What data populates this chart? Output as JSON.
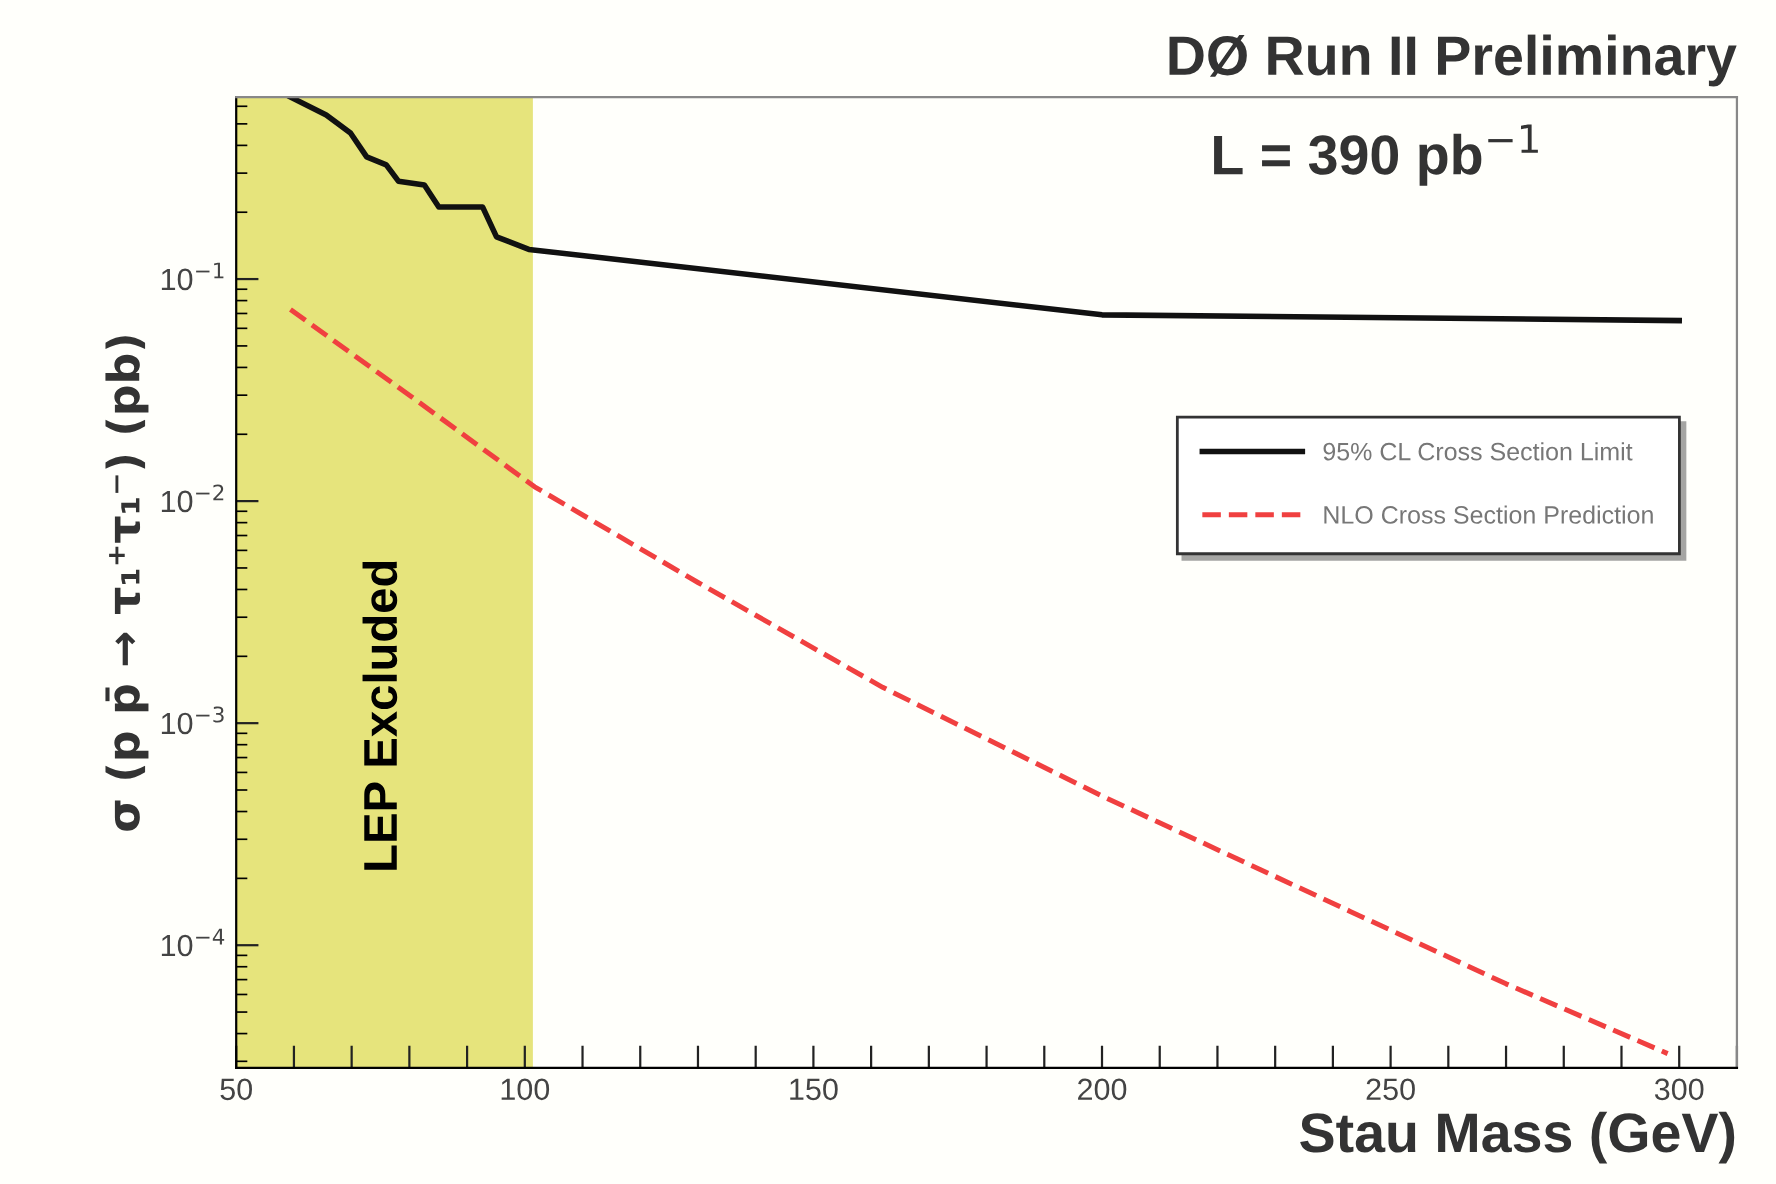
{
  "chart_data": {
    "type": "line",
    "title": "DØ Run II Preliminary",
    "xlabel": "Stau Mass (GeV)",
    "ylabel": "σ (p p̄ → τ₁⁺τ₁⁻) (pb)",
    "annotations": [
      "L = 390 pb$^{−1}$"
    ],
    "log": "y",
    "xlim": [
      50,
      310
    ],
    "ylim": [
      2.8e-05,
      0.66
    ],
    "xticks": [
      50,
      {
        "value": 60,
        "label": null
      },
      {
        "value": 70,
        "label": null
      },
      {
        "value": 80,
        "label": null
      },
      {
        "value": 90,
        "label": null
      },
      100,
      {
        "value": 110,
        "label": null
      },
      {
        "value": 120,
        "label": null
      },
      {
        "value": 130,
        "label": null
      },
      {
        "value": 140,
        "label": null
      },
      150,
      {
        "value": 160,
        "label": null
      },
      {
        "value": 170,
        "label": null
      },
      {
        "value": 180,
        "label": null
      },
      {
        "value": 190,
        "label": null
      },
      200,
      {
        "value": 210,
        "label": null
      },
      {
        "value": 220,
        "label": null
      },
      {
        "value": 230,
        "label": null
      },
      {
        "value": 240,
        "label": null
      },
      250,
      {
        "value": 260,
        "label": null
      },
      {
        "value": 270,
        "label": null
      },
      {
        "value": 280,
        "label": null
      },
      {
        "value": 290,
        "label": null
      },
      300,
      {
        "value": 310,
        "label": null
      }
    ],
    "yticks": [
      {
        "value": 0.0001,
        "label": "10$^{−4}$"
      },
      {
        "value": 0.001,
        "label": "10$^{−3}$"
      },
      {
        "value": 0.01,
        "label": "10$^{−2}$"
      },
      {
        "value": 0.1,
        "label": "10$^{−1}$"
      }
    ],
    "bands": [
      {
        "axis": "x",
        "from": 50,
        "to": 101.4,
        "label": "LEP Excluded",
        "color": "#e6e47c"
      }
    ],
    "legend": "right",
    "grid": false,
    "series": [
      {
        "name": "95% CL Cross Section Limit",
        "color": "#111111",
        "line_style": "solid",
        "x": [
          59.4,
          65.6,
          69.8,
          72.6,
          76.0,
          78.1,
          82.6,
          85.1,
          92.7,
          95.1,
          100.7,
          200,
          300
        ],
        "values": [
          0.66,
          0.548,
          0.455,
          0.355,
          0.327,
          0.276,
          0.265,
          0.211,
          0.211,
          0.155,
          0.136,
          0.069,
          0.065
        ]
      },
      {
        "name": "NLO Cross Section Prediction",
        "color": "#f04040",
        "line_style": "dashed",
        "x": [
          59.4,
          80,
          101.7,
          130,
          162,
          200,
          243,
          270,
          298
        ],
        "values": [
          0.073,
          0.03,
          0.0116,
          0.0043,
          0.00145,
          0.00047,
          0.000142,
          6.7e-05,
          3.25e-05
        ]
      }
    ]
  }
}
